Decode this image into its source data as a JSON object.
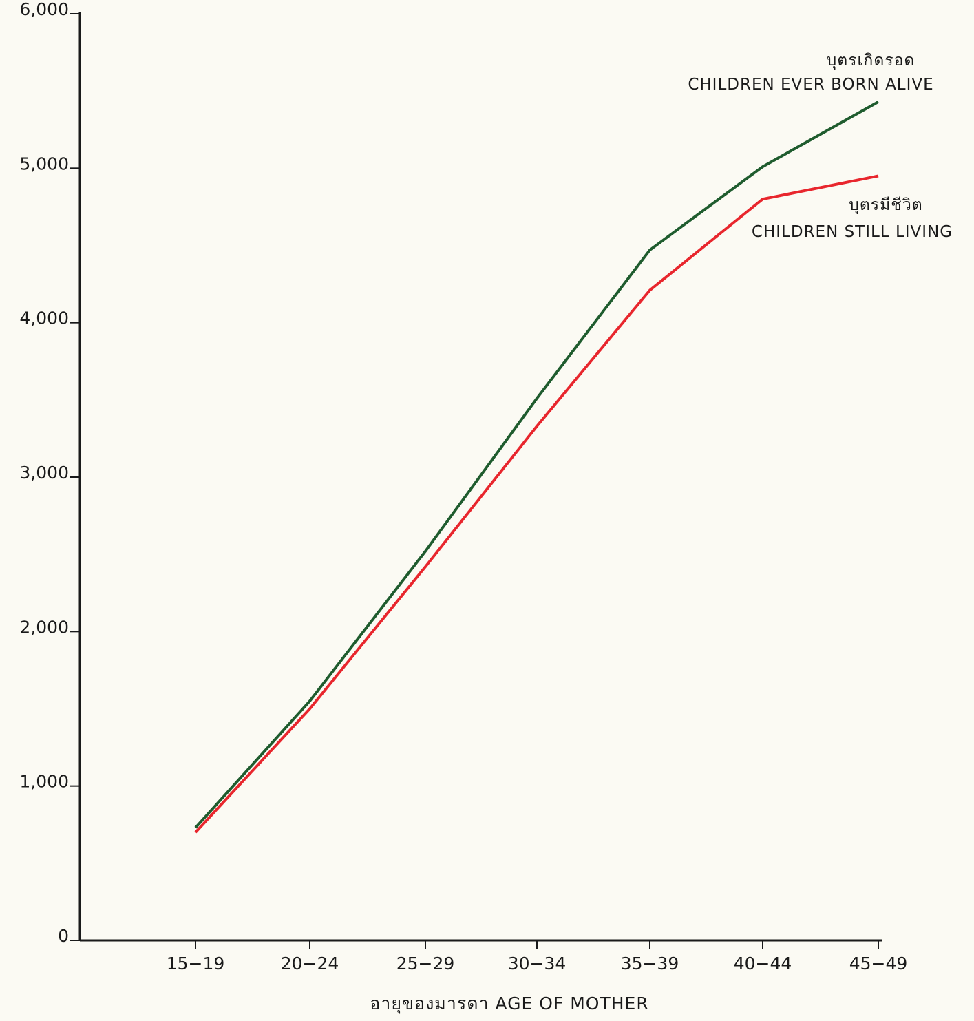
{
  "chart_data": {
    "type": "line",
    "title": "",
    "xlabel": "อายุของมารดา AGE OF MOTHER",
    "ylabel": "",
    "categories": [
      "15-19",
      "20-24",
      "25-29",
      "30-34",
      "35-39",
      "40-44",
      "45-49"
    ],
    "ylim": [
      0,
      6000
    ],
    "yticks": [
      0,
      1000,
      2000,
      3000,
      4000,
      5000,
      6000
    ],
    "ytick_labels": [
      "0",
      "1,000",
      "2,000",
      "3,000",
      "4,000",
      "5,000",
      "6,000"
    ],
    "grid": false,
    "legend": "none",
    "series": [
      {
        "name_th": "บุตรเกิดรอด",
        "name": "CHILDREN EVER BORN ALIVE",
        "color": "#1f5c2e",
        "values": [
          730,
          1550,
          2520,
          3510,
          4470,
          5010,
          5430
        ]
      },
      {
        "name_th": "บุตรมีชีวิต",
        "name": "CHILDREN STILL LIVING",
        "color": "#e8262d",
        "values": [
          700,
          1500,
          2420,
          3330,
          4210,
          4800,
          4950
        ]
      }
    ]
  }
}
